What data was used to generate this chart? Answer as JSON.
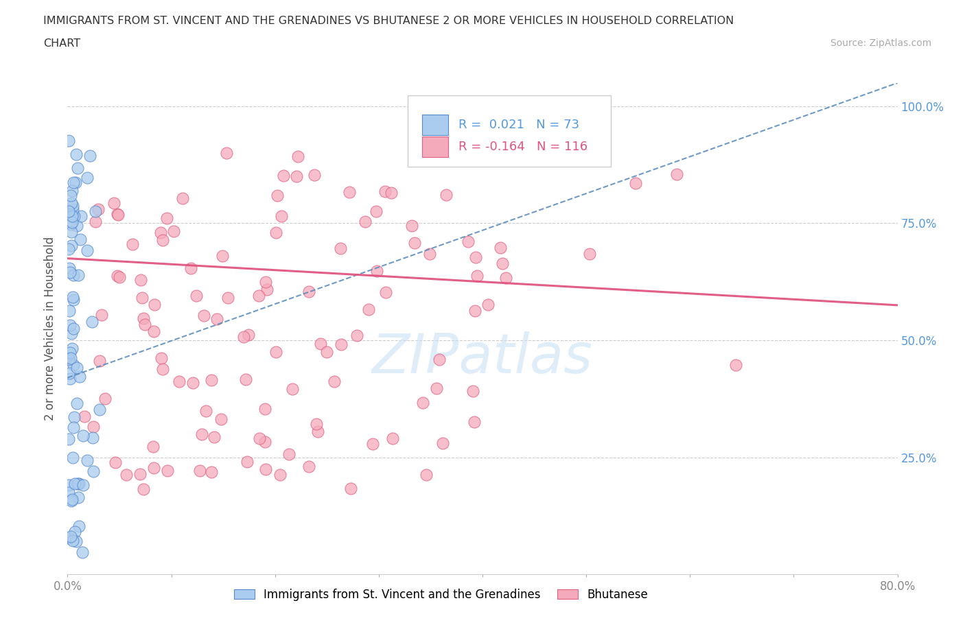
{
  "title_line1": "IMMIGRANTS FROM ST. VINCENT AND THE GRENADINES VS BHUTANESE 2 OR MORE VEHICLES IN HOUSEHOLD CORRELATION",
  "title_line2": "CHART",
  "source": "Source: ZipAtlas.com",
  "ylabel": "2 or more Vehicles in Household",
  "xmin": 0.0,
  "xmax": 0.8,
  "ymin": 0.0,
  "ymax": 1.05,
  "legend_blue_label": "Immigrants from St. Vincent and the Grenadines",
  "legend_pink_label": "Bhutanese",
  "blue_R": "0.021",
  "blue_N": "73",
  "pink_R": "-0.164",
  "pink_N": "116",
  "blue_color": "#aaccee",
  "pink_color": "#f5aabb",
  "blue_edge_color": "#5588cc",
  "pink_edge_color": "#e06080",
  "blue_line_color": "#5588bb",
  "pink_line_color": "#e05580",
  "watermark": "ZIPatlas",
  "blue_trend_x0": 0.0,
  "blue_trend_y0": 0.42,
  "blue_trend_x1": 0.8,
  "blue_trend_y1": 1.05,
  "pink_trend_x0": 0.0,
  "pink_trend_y0": 0.675,
  "pink_trend_x1": 0.8,
  "pink_trend_y1": 0.575
}
